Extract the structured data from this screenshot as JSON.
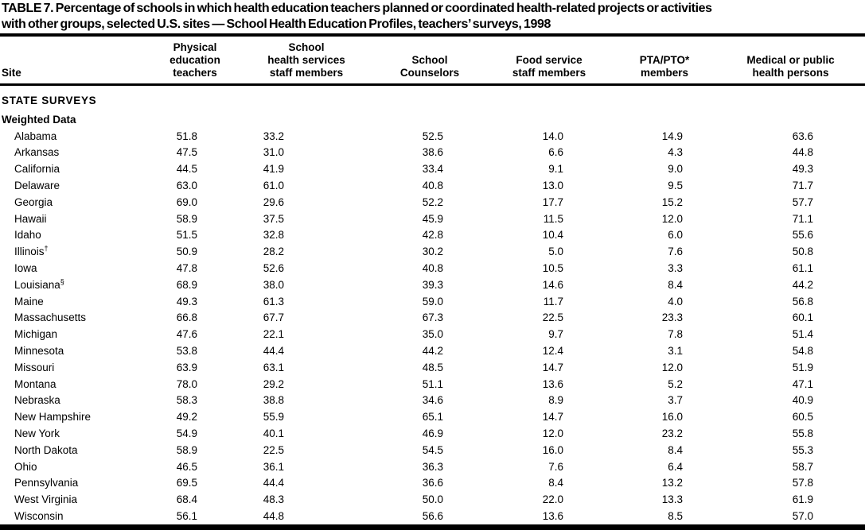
{
  "header": {
    "title_line1": "TABLE 7. Percentage of schools in which health education teachers planned or coordinated health-related projects or activities",
    "title_line2": "with other groups, selected U.S. sites — School Health Education Profiles, teachers’ surveys, 1998"
  },
  "table": {
    "site_column_header": "Site",
    "column_headers": [
      "Physical\neducation\nteachers",
      "School\nhealth services\nstaff members",
      "School\nCounselors",
      "Food service\nstaff members",
      "PTA/PTO*\nmembers",
      "Medical or public\nhealth persons"
    ],
    "section1_label": "STATE SURVEYS",
    "section2_label": "Weighted Data",
    "rows": [
      {
        "site": "Alabama",
        "marker": "",
        "values": [
          "51.8",
          "33.2",
          "52.5",
          "14.0",
          "14.9",
          "63.6"
        ]
      },
      {
        "site": "Arkansas",
        "marker": "",
        "values": [
          "47.5",
          "31.0",
          "38.6",
          "6.6",
          "4.3",
          "44.8"
        ]
      },
      {
        "site": "California",
        "marker": "",
        "values": [
          "44.5",
          "41.9",
          "33.4",
          "9.1",
          "9.0",
          "49.3"
        ]
      },
      {
        "site": "Delaware",
        "marker": "",
        "values": [
          "63.0",
          "61.0",
          "40.8",
          "13.0",
          "9.5",
          "71.7"
        ]
      },
      {
        "site": "Georgia",
        "marker": "",
        "values": [
          "69.0",
          "29.6",
          "52.2",
          "17.7",
          "15.2",
          "57.7"
        ]
      },
      {
        "site": "Hawaii",
        "marker": "",
        "values": [
          "58.9",
          "37.5",
          "45.9",
          "11.5",
          "12.0",
          "71.1"
        ]
      },
      {
        "site": "Idaho",
        "marker": "",
        "values": [
          "51.5",
          "32.8",
          "42.8",
          "10.4",
          "6.0",
          "55.6"
        ]
      },
      {
        "site": "Illinois",
        "marker": "†",
        "values": [
          "50.9",
          "28.2",
          "30.2",
          "5.0",
          "7.6",
          "50.8"
        ]
      },
      {
        "site": "Iowa",
        "marker": "",
        "values": [
          "47.8",
          "52.6",
          "40.8",
          "10.5",
          "3.3",
          "61.1"
        ]
      },
      {
        "site": "Louisiana",
        "marker": "§",
        "values": [
          "68.9",
          "38.0",
          "39.3",
          "14.6",
          "8.4",
          "44.2"
        ]
      },
      {
        "site": "Maine",
        "marker": "",
        "values": [
          "49.3",
          "61.3",
          "59.0",
          "11.7",
          "4.0",
          "56.8"
        ]
      },
      {
        "site": "Massachusetts",
        "marker": "",
        "values": [
          "66.8",
          "67.7",
          "67.3",
          "22.5",
          "23.3",
          "60.1"
        ]
      },
      {
        "site": "Michigan",
        "marker": "",
        "values": [
          "47.6",
          "22.1",
          "35.0",
          "9.7",
          "7.8",
          "51.4"
        ]
      },
      {
        "site": "Minnesota",
        "marker": "",
        "values": [
          "53.8",
          "44.4",
          "44.2",
          "12.4",
          "3.1",
          "54.8"
        ]
      },
      {
        "site": "Missouri",
        "marker": "",
        "values": [
          "63.9",
          "63.1",
          "48.5",
          "14.7",
          "12.0",
          "51.9"
        ]
      },
      {
        "site": "Montana",
        "marker": "",
        "values": [
          "78.0",
          "29.2",
          "51.1",
          "13.6",
          "5.2",
          "47.1"
        ]
      },
      {
        "site": "Nebraska",
        "marker": "",
        "values": [
          "58.3",
          "38.8",
          "34.6",
          "8.9",
          "3.7",
          "40.9"
        ]
      },
      {
        "site": "New Hampshire",
        "marker": "",
        "values": [
          "49.2",
          "55.9",
          "65.1",
          "14.7",
          "16.0",
          "60.5"
        ]
      },
      {
        "site": "New York",
        "marker": "",
        "values": [
          "54.9",
          "40.1",
          "46.9",
          "12.0",
          "23.2",
          "55.8"
        ]
      },
      {
        "site": "North Dakota",
        "marker": "",
        "values": [
          "58.9",
          "22.5",
          "54.5",
          "16.0",
          "8.4",
          "55.3"
        ]
      },
      {
        "site": "Ohio",
        "marker": "",
        "values": [
          "46.5",
          "36.1",
          "36.3",
          "7.6",
          "6.4",
          "58.7"
        ]
      },
      {
        "site": "Pennsylvania",
        "marker": "",
        "values": [
          "69.5",
          "44.4",
          "36.6",
          "8.4",
          "13.2",
          "57.8"
        ]
      },
      {
        "site": "West Virginia",
        "marker": "",
        "values": [
          "68.4",
          "48.3",
          "50.0",
          "22.0",
          "13.3",
          "61.9"
        ]
      },
      {
        "site": "Wisconsin",
        "marker": "",
        "values": [
          "56.1",
          "44.8",
          "56.6",
          "13.6",
          "8.5",
          "57.0"
        ]
      }
    ]
  },
  "colors": {
    "text": "#000000",
    "background": "#ffffff",
    "rule": "#000000"
  }
}
